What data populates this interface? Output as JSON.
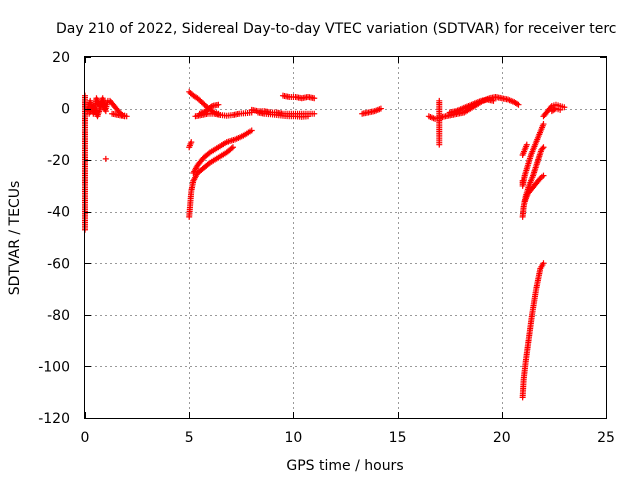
{
  "chart_data": {
    "type": "scatter",
    "title": "Day 210 of 2022, Sidereal Day-to-day VTEC variation (SDTVAR) for receiver terc",
    "xlabel": "GPS time / hours",
    "ylabel": "SDTVAR / TECUs",
    "xlim": [
      0,
      25
    ],
    "ylim": [
      -120,
      20
    ],
    "x_ticks": [
      0,
      5,
      10,
      15,
      20,
      25
    ],
    "y_ticks": [
      20,
      0,
      -20,
      -40,
      -60,
      -80,
      -100,
      -120
    ],
    "x_tick_labels": [
      "0",
      "5",
      "10",
      "15",
      "20",
      "25"
    ],
    "y_tick_labels": [
      "20",
      "0",
      "-20",
      "-40",
      "-60",
      "-80",
      "-100",
      "-120"
    ],
    "grid": true,
    "marker": "+",
    "color": "#ff0000",
    "segments": [
      [
        [
          0.0,
          5.0
        ],
        [
          0.0,
          -8.0
        ],
        [
          0.0,
          -28.0
        ],
        [
          0.0,
          -30.0
        ],
        [
          0.0,
          -47.0
        ]
      ],
      [
        [
          0.1,
          -1.0
        ],
        [
          0.25,
          3.0
        ],
        [
          0.4,
          -2.0
        ],
        [
          0.55,
          4.0
        ],
        [
          0.7,
          1.0
        ],
        [
          0.85,
          4.0
        ],
        [
          1.0,
          0.0
        ],
        [
          1.1,
          3.0
        ]
      ],
      [
        [
          0.2,
          -2.0
        ],
        [
          0.4,
          1.0
        ],
        [
          0.6,
          -3.0
        ],
        [
          0.8,
          2.0
        ],
        [
          1.0,
          -1.0
        ]
      ],
      [
        [
          1.0,
          -19.5
        ]
      ],
      [
        [
          1.2,
          3.0
        ],
        [
          1.4,
          1.0
        ],
        [
          1.6,
          -1.0
        ],
        [
          1.8,
          -2.5
        ],
        [
          2.0,
          -3.0
        ]
      ],
      [
        [
          1.3,
          -2.0
        ],
        [
          1.6,
          -2.5
        ],
        [
          1.9,
          -3.0
        ]
      ],
      [
        [
          5.0,
          -15.0
        ],
        [
          5.1,
          -13.0
        ]
      ],
      [
        [
          5.0,
          -42.0
        ],
        [
          5.05,
          -37.0
        ],
        [
          5.1,
          -32.0
        ],
        [
          5.2,
          -28.0
        ],
        [
          5.4,
          -25.0
        ],
        [
          5.7,
          -23.0
        ],
        [
          6.0,
          -21.0
        ],
        [
          6.4,
          -19.0
        ],
        [
          6.8,
          -17.0
        ],
        [
          7.1,
          -15.0
        ]
      ],
      [
        [
          5.2,
          -25.0
        ],
        [
          5.4,
          -22.0
        ],
        [
          5.7,
          -19.0
        ],
        [
          6.0,
          -17.0
        ],
        [
          6.4,
          -15.0
        ],
        [
          6.8,
          -13.0
        ],
        [
          7.2,
          -12.0
        ],
        [
          7.6,
          -10.5
        ],
        [
          8.0,
          -8.5
        ]
      ],
      [
        [
          5.0,
          6.5
        ],
        [
          5.2,
          5.0
        ],
        [
          5.4,
          4.0
        ],
        [
          5.6,
          2.5
        ],
        [
          5.8,
          1.0
        ],
        [
          6.0,
          -0.5
        ],
        [
          6.2,
          -1.5
        ],
        [
          6.4,
          -2.0
        ]
      ],
      [
        [
          5.3,
          -3.0
        ],
        [
          5.6,
          -2.5
        ],
        [
          5.9,
          -2.0
        ],
        [
          6.2,
          -2.0
        ],
        [
          6.5,
          -2.5
        ],
        [
          6.8,
          -2.8
        ],
        [
          7.1,
          -2.5
        ],
        [
          7.4,
          -2.0
        ],
        [
          7.7,
          -1.8
        ],
        [
          8.0,
          -1.5
        ]
      ],
      [
        [
          5.5,
          -2.0
        ],
        [
          5.8,
          -1.0
        ],
        [
          6.1,
          1.0
        ],
        [
          6.4,
          1.5
        ]
      ],
      [
        [
          8.0,
          -0.5
        ],
        [
          8.3,
          -1.0
        ],
        [
          8.6,
          -1.0
        ],
        [
          8.9,
          -1.5
        ],
        [
          9.2,
          -1.5
        ],
        [
          9.5,
          -2.0
        ],
        [
          9.8,
          -2.0
        ],
        [
          10.1,
          -2.0
        ],
        [
          10.4,
          -2.0
        ],
        [
          10.7,
          -2.0
        ],
        [
          11.0,
          -2.0
        ]
      ],
      [
        [
          8.3,
          -1.5
        ],
        [
          8.6,
          -2.0
        ],
        [
          8.9,
          -2.2
        ],
        [
          9.2,
          -2.5
        ],
        [
          9.5,
          -2.8
        ],
        [
          9.8,
          -3.0
        ],
        [
          10.1,
          -3.0
        ],
        [
          10.4,
          -3.2
        ],
        [
          10.7,
          -3.0
        ]
      ],
      [
        [
          9.5,
          5.0
        ],
        [
          9.8,
          4.5
        ],
        [
          10.1,
          4.5
        ],
        [
          10.4,
          4.0
        ],
        [
          10.7,
          4.5
        ],
        [
          11.0,
          4.0
        ]
      ],
      [
        [
          13.3,
          -2.0
        ],
        [
          13.6,
          -1.5
        ],
        [
          13.9,
          -1.0
        ],
        [
          14.2,
          0.0
        ]
      ],
      [
        [
          16.5,
          -3.0
        ],
        [
          16.8,
          -4.0
        ],
        [
          17.0,
          -3.5
        ],
        [
          17.3,
          -3.0
        ],
        [
          17.6,
          -2.5
        ],
        [
          17.9,
          -2.0
        ],
        [
          18.2,
          -1.5
        ],
        [
          18.5,
          0.0
        ],
        [
          18.8,
          1.5
        ],
        [
          19.1,
          3.0
        ],
        [
          19.4,
          4.0
        ],
        [
          19.7,
          4.5
        ],
        [
          20.0,
          4.0
        ],
        [
          20.3,
          3.5
        ],
        [
          20.6,
          2.5
        ],
        [
          20.8,
          1.5
        ]
      ],
      [
        [
          17.5,
          -1.5
        ],
        [
          17.8,
          -1.0
        ],
        [
          18.1,
          0.0
        ],
        [
          18.4,
          1.0
        ],
        [
          18.7,
          2.0
        ],
        [
          19.0,
          3.0
        ],
        [
          19.3,
          3.5
        ],
        [
          19.6,
          3.0
        ]
      ],
      [
        [
          17.0,
          3.0
        ],
        [
          17.0,
          -6.0
        ],
        [
          17.0,
          -11.0
        ],
        [
          17.0,
          -14.0
        ]
      ],
      [
        [
          21.0,
          -28.0
        ],
        [
          21.0,
          -30.0
        ],
        [
          21.1,
          -26.0
        ],
        [
          21.25,
          -22.0
        ],
        [
          21.4,
          -18.0
        ],
        [
          21.6,
          -14.0
        ],
        [
          21.8,
          -10.0
        ],
        [
          22.0,
          -6.0
        ]
      ],
      [
        [
          21.0,
          -42.0
        ],
        [
          21.05,
          -38.0
        ],
        [
          21.15,
          -34.0
        ],
        [
          21.3,
          -30.0
        ],
        [
          21.5,
          -26.0
        ],
        [
          21.7,
          -21.0
        ],
        [
          21.9,
          -16.0
        ],
        [
          22.0,
          -15.0
        ]
      ],
      [
        [
          21.1,
          -36.0
        ],
        [
          21.25,
          -33.0
        ],
        [
          21.45,
          -31.0
        ],
        [
          21.65,
          -29.0
        ],
        [
          21.85,
          -27.0
        ],
        [
          22.0,
          -26.0
        ]
      ],
      [
        [
          21.0,
          -112.0
        ],
        [
          21.05,
          -105.0
        ],
        [
          21.15,
          -98.0
        ],
        [
          21.25,
          -92.0
        ],
        [
          21.35,
          -86.0
        ],
        [
          21.45,
          -80.0
        ],
        [
          21.55,
          -75.0
        ],
        [
          21.65,
          -70.0
        ],
        [
          21.75,
          -66.0
        ],
        [
          21.85,
          -62.0
        ],
        [
          22.0,
          -60.0
        ]
      ],
      [
        [
          21.0,
          -18.0
        ],
        [
          21.1,
          -16.0
        ],
        [
          21.2,
          -14.0
        ]
      ],
      [
        [
          22.0,
          -3.0
        ],
        [
          22.2,
          -1.0
        ],
        [
          22.4,
          1.0
        ],
        [
          22.6,
          1.5
        ],
        [
          22.8,
          1.0
        ],
        [
          23.0,
          0.5
        ]
      ],
      [
        [
          22.4,
          -1.0
        ],
        [
          22.6,
          0.0
        ],
        [
          22.8,
          -0.5
        ]
      ]
    ]
  }
}
